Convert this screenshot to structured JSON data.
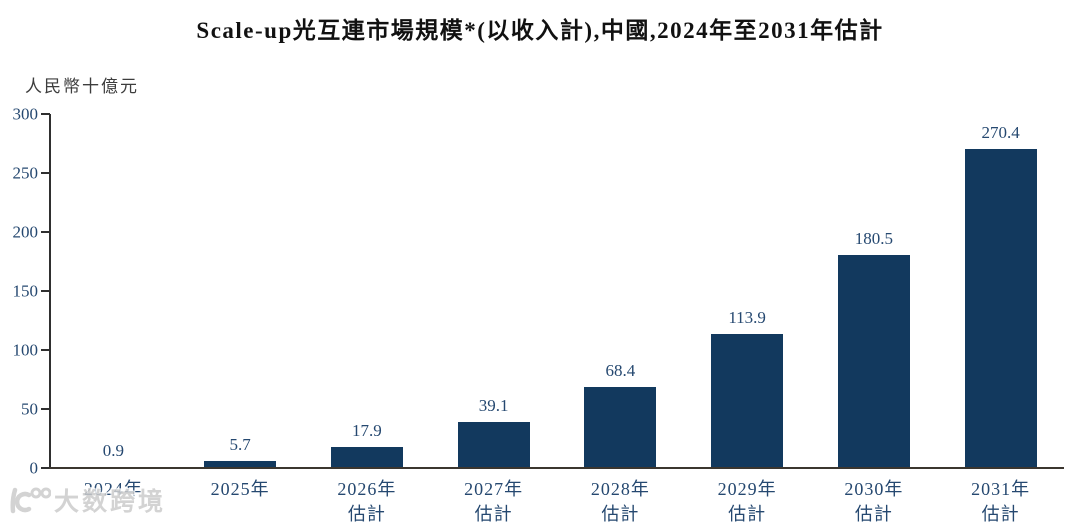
{
  "chart_data": {
    "type": "bar",
    "title": "Scale-up光互連市場規模*(以收入計),中國,2024年至2031年估計",
    "unit_label": "人民幣十億元",
    "categories": [
      "2024年",
      "2025年",
      "2026年\n估計",
      "2027年\n估計",
      "2028年\n估計",
      "2029年\n估計",
      "2030年\n估計",
      "2031年\n估計"
    ],
    "values": [
      0.9,
      5.7,
      17.9,
      39.1,
      68.4,
      113.9,
      180.5,
      270.4
    ],
    "ylim": [
      0,
      300
    ],
    "yticks": [
      0,
      50,
      100,
      150,
      200,
      250,
      300
    ],
    "grid": false,
    "legend_position": "none",
    "bar_color": "#12395E",
    "label_color": "#254870",
    "axis_color": "#2F2F2F"
  },
  "watermark": {
    "text": "大数跨境",
    "icon": "dashu-kuajing-logo-icon"
  }
}
